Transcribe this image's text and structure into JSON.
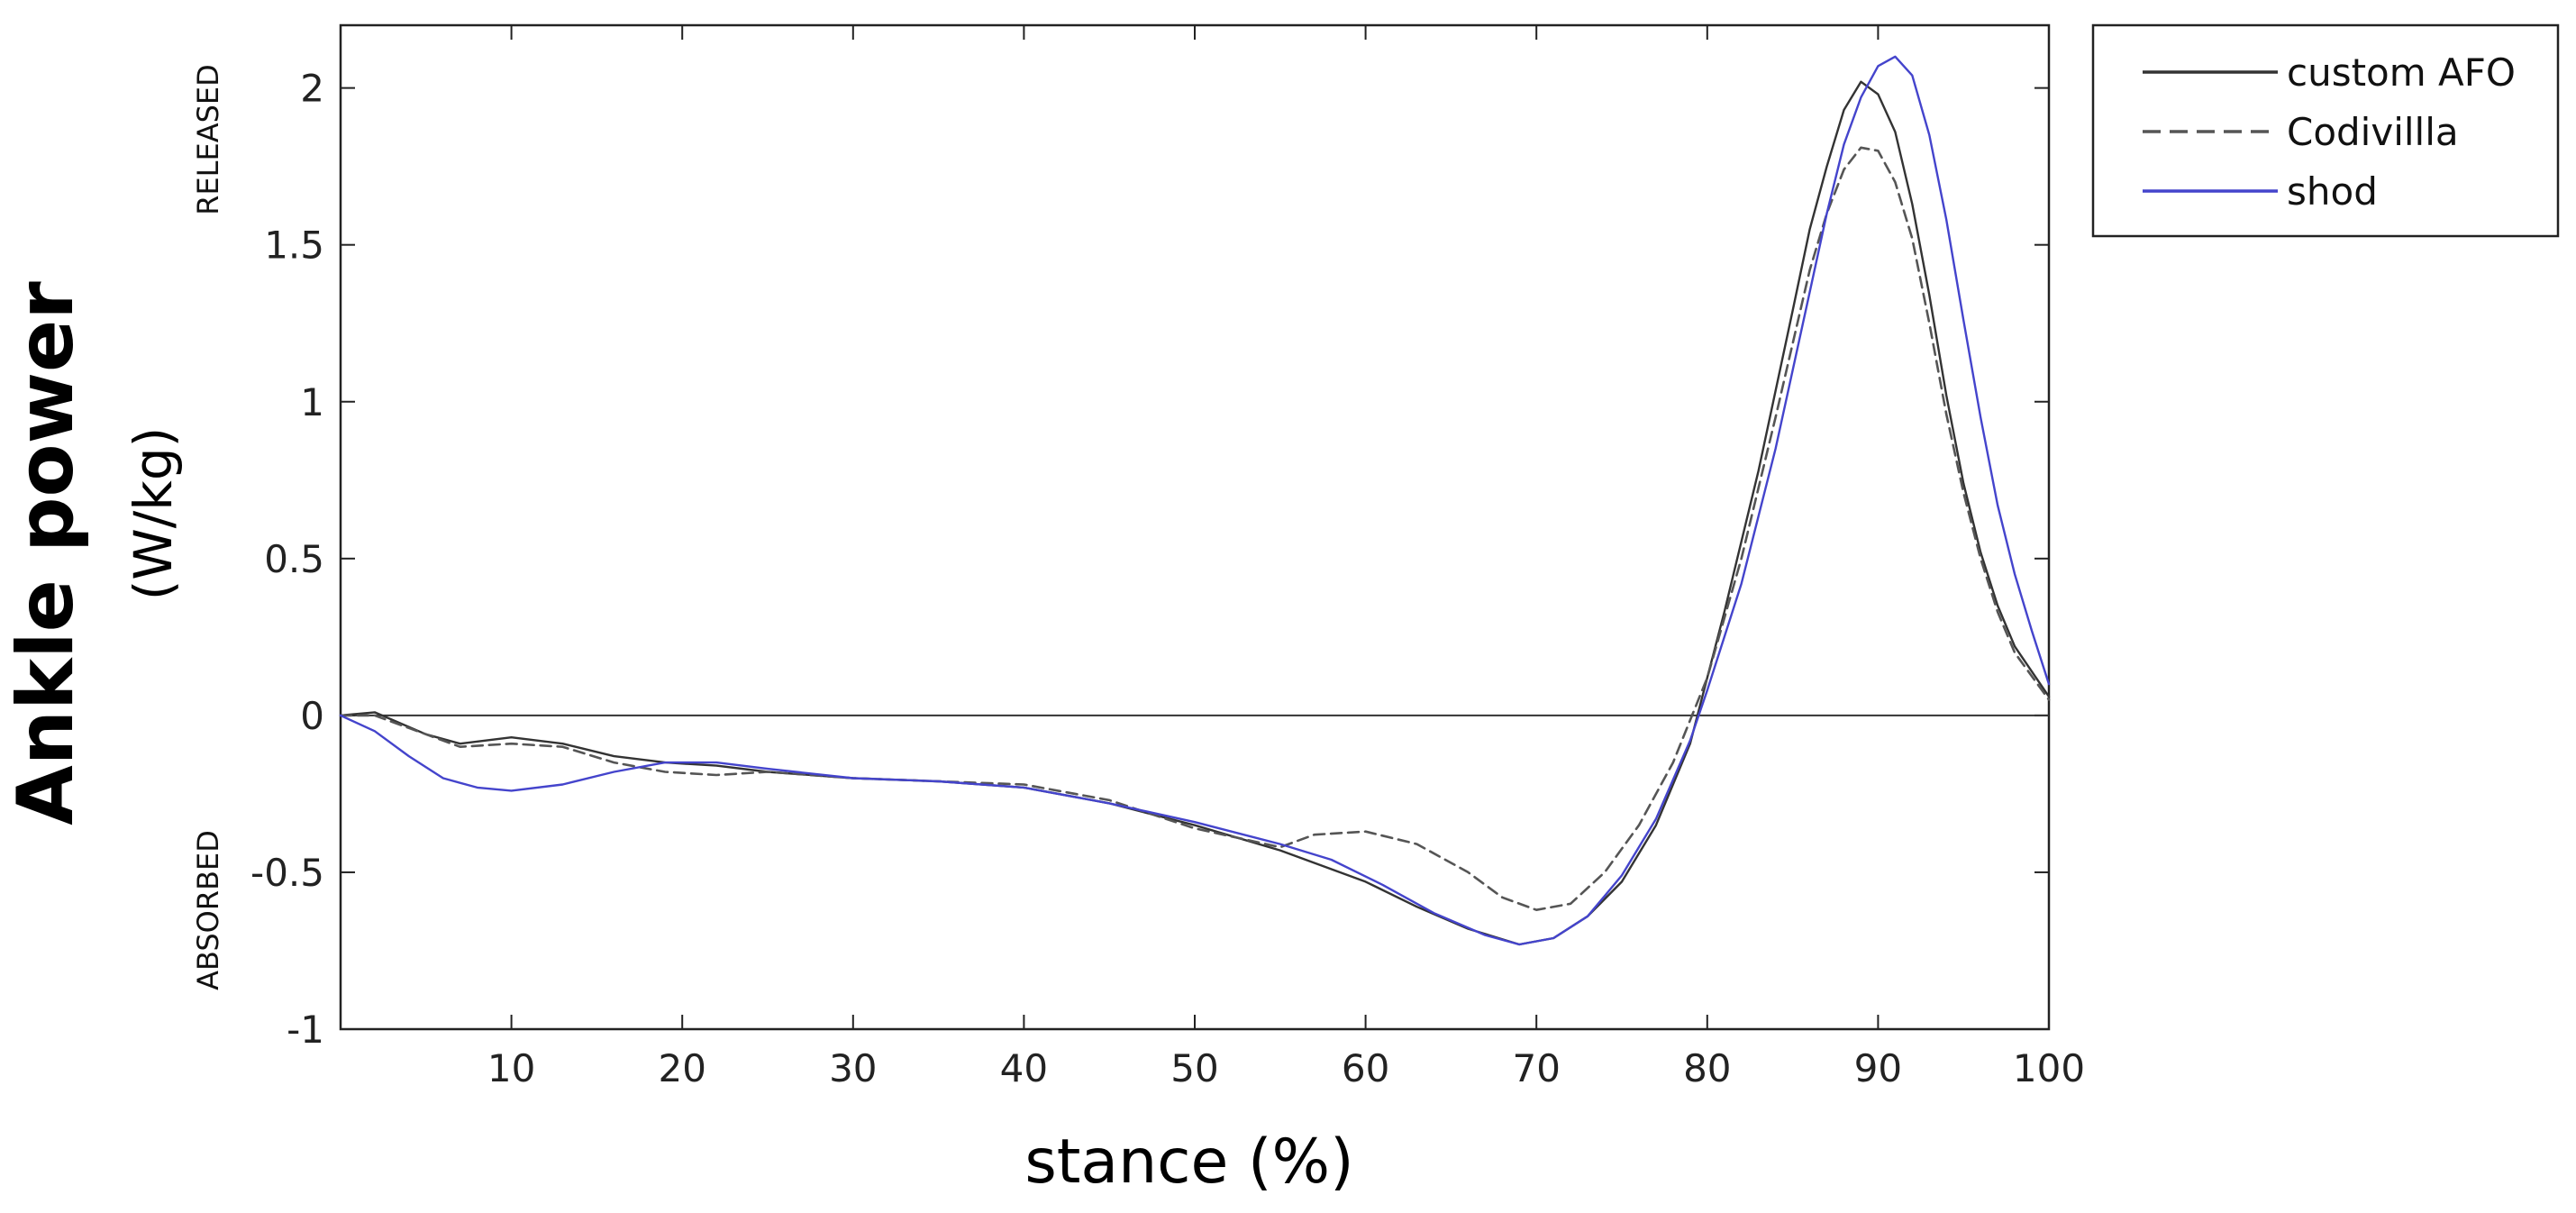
{
  "chart_data": {
    "type": "line",
    "title": "",
    "xlabel": "stance (%)",
    "ylabel": "Ankle power",
    "ylabel_units": "(W/kg)",
    "upper_region_label": "RELEASED",
    "lower_region_label": "ABSORBED",
    "xlim": [
      0,
      100
    ],
    "ylim": [
      -1,
      2.2
    ],
    "x_ticks": [
      10,
      20,
      30,
      40,
      50,
      60,
      70,
      80,
      90,
      100
    ],
    "y_ticks": [
      -1,
      -0.5,
      0,
      0.5,
      1,
      1.5,
      2
    ],
    "y_tick_labels": [
      "-1",
      "-0.5",
      "0",
      "0.5",
      "1",
      "1.5",
      "2"
    ],
    "zero_line": true,
    "legend_position": "outside-top-right",
    "series": [
      {
        "name": "custom AFO",
        "color": "#333333",
        "dash": "solid",
        "x": [
          0,
          2,
          5,
          7,
          10,
          13,
          16,
          19,
          22,
          25,
          30,
          35,
          40,
          45,
          50,
          55,
          60,
          63,
          66,
          69,
          71,
          73,
          75,
          77,
          79,
          81,
          83,
          85,
          86,
          87,
          88,
          89,
          90,
          91,
          92,
          93,
          94,
          95,
          96,
          97,
          98,
          100
        ],
        "values": [
          0.0,
          0.01,
          -0.06,
          -0.09,
          -0.07,
          -0.09,
          -0.13,
          -0.15,
          -0.16,
          -0.18,
          -0.2,
          -0.21,
          -0.23,
          -0.28,
          -0.35,
          -0.43,
          -0.53,
          -0.61,
          -0.68,
          -0.73,
          -0.71,
          -0.64,
          -0.53,
          -0.35,
          -0.09,
          0.33,
          0.78,
          1.29,
          1.55,
          1.75,
          1.93,
          2.02,
          1.98,
          1.86,
          1.63,
          1.34,
          1.02,
          0.74,
          0.52,
          0.35,
          0.22,
          0.06
        ]
      },
      {
        "name": "Codivillla",
        "color": "#555555",
        "dash": "dashed",
        "x": [
          0,
          2,
          5,
          7,
          10,
          13,
          16,
          19,
          22,
          25,
          30,
          35,
          40,
          45,
          50,
          55,
          57,
          60,
          63,
          66,
          68,
          70,
          72,
          74,
          76,
          78,
          80,
          82,
          84,
          86,
          87,
          88,
          89,
          90,
          91,
          92,
          93,
          94,
          95,
          96,
          97,
          98,
          100
        ],
        "values": [
          0.0,
          0.0,
          -0.06,
          -0.1,
          -0.09,
          -0.1,
          -0.15,
          -0.18,
          -0.19,
          -0.18,
          -0.2,
          -0.21,
          -0.22,
          -0.27,
          -0.36,
          -0.42,
          -0.38,
          -0.37,
          -0.41,
          -0.5,
          -0.58,
          -0.62,
          -0.6,
          -0.5,
          -0.35,
          -0.15,
          0.12,
          0.5,
          0.95,
          1.42,
          1.6,
          1.74,
          1.81,
          1.8,
          1.7,
          1.52,
          1.25,
          0.96,
          0.71,
          0.5,
          0.33,
          0.2,
          0.05
        ]
      },
      {
        "name": "shod",
        "color": "#4444cc",
        "dash": "solid",
        "x": [
          0,
          2,
          4,
          6,
          8,
          10,
          13,
          16,
          19,
          22,
          25,
          30,
          35,
          40,
          45,
          50,
          55,
          58,
          61,
          64,
          67,
          69,
          71,
          73,
          75,
          77,
          79,
          80,
          82,
          84,
          86,
          87,
          88,
          89,
          90,
          91,
          92,
          93,
          94,
          95,
          96,
          97,
          98,
          99,
          100
        ],
        "values": [
          0.0,
          -0.05,
          -0.13,
          -0.2,
          -0.23,
          -0.24,
          -0.22,
          -0.18,
          -0.15,
          -0.15,
          -0.17,
          -0.2,
          -0.21,
          -0.23,
          -0.28,
          -0.34,
          -0.41,
          -0.46,
          -0.54,
          -0.63,
          -0.7,
          -0.73,
          -0.71,
          -0.64,
          -0.51,
          -0.33,
          -0.08,
          0.08,
          0.42,
          0.85,
          1.35,
          1.6,
          1.82,
          1.97,
          2.07,
          2.1,
          2.04,
          1.85,
          1.58,
          1.26,
          0.95,
          0.67,
          0.45,
          0.27,
          0.1
        ]
      }
    ]
  }
}
